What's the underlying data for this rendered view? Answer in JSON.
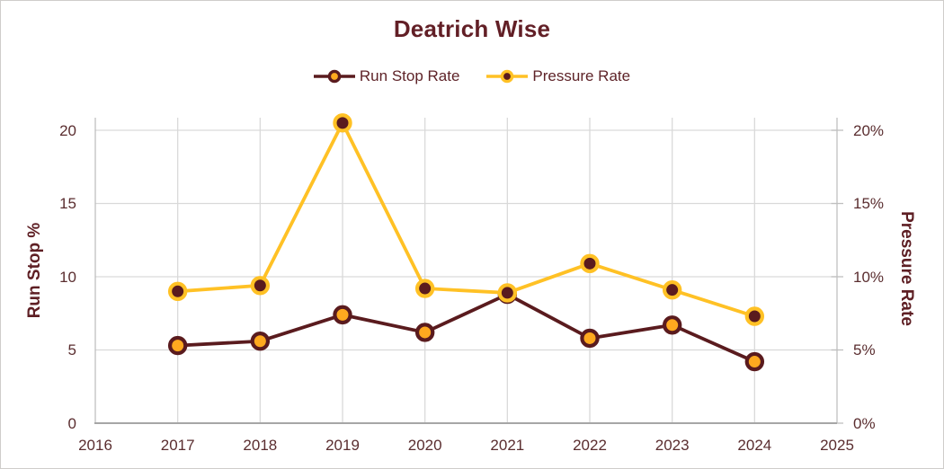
{
  "chart_data": {
    "type": "line",
    "title": "Deatrich Wise",
    "categories": [
      2017,
      2018,
      2019,
      2020,
      2021,
      2022,
      2023,
      2024
    ],
    "series": [
      {
        "name": "Run Stop Rate",
        "axis": "left",
        "line_color": "#5a1b1e",
        "marker_fill": "#ffa91f",
        "marker_ring": "#5a1b1e",
        "values": [
          5.3,
          5.6,
          7.4,
          6.2,
          8.8,
          5.8,
          6.7,
          4.2
        ]
      },
      {
        "name": "Pressure Rate",
        "axis": "right",
        "line_color": "#ffc125",
        "marker_fill": "#5a1b1e",
        "marker_ring": "#ffc125",
        "values": [
          9.0,
          9.4,
          20.5,
          9.2,
          8.9,
          10.9,
          9.1,
          7.3
        ]
      }
    ],
    "xaxis": {
      "range": [
        2016,
        2025
      ],
      "ticks": [
        "2016",
        "2017",
        "2018",
        "2019",
        "2020",
        "2021",
        "2022",
        "2023",
        "2024",
        "2025"
      ]
    },
    "left_axis": {
      "label": "Run Stop %",
      "ticks": [
        "0",
        "5",
        "10",
        "15",
        "20"
      ],
      "tick_values": [
        0,
        5,
        10,
        15,
        20
      ],
      "range": [
        0,
        20.86
      ]
    },
    "right_axis": {
      "label": "Pressure Rate",
      "ticks": [
        "0%",
        "5%",
        "10%",
        "15%",
        "20%"
      ],
      "tick_values": [
        0,
        5,
        10,
        15,
        20
      ],
      "range": [
        0,
        20.86
      ]
    },
    "grid": true,
    "legend_position": "top"
  },
  "colors": {
    "gridline": "#d9d9d9",
    "side_axis_line": "#bfbfbf",
    "bottom_axis_line": "#a6a6a6",
    "title_text": "#621f26",
    "tick_text": "#5a2d2f",
    "background": "#ffffff"
  }
}
